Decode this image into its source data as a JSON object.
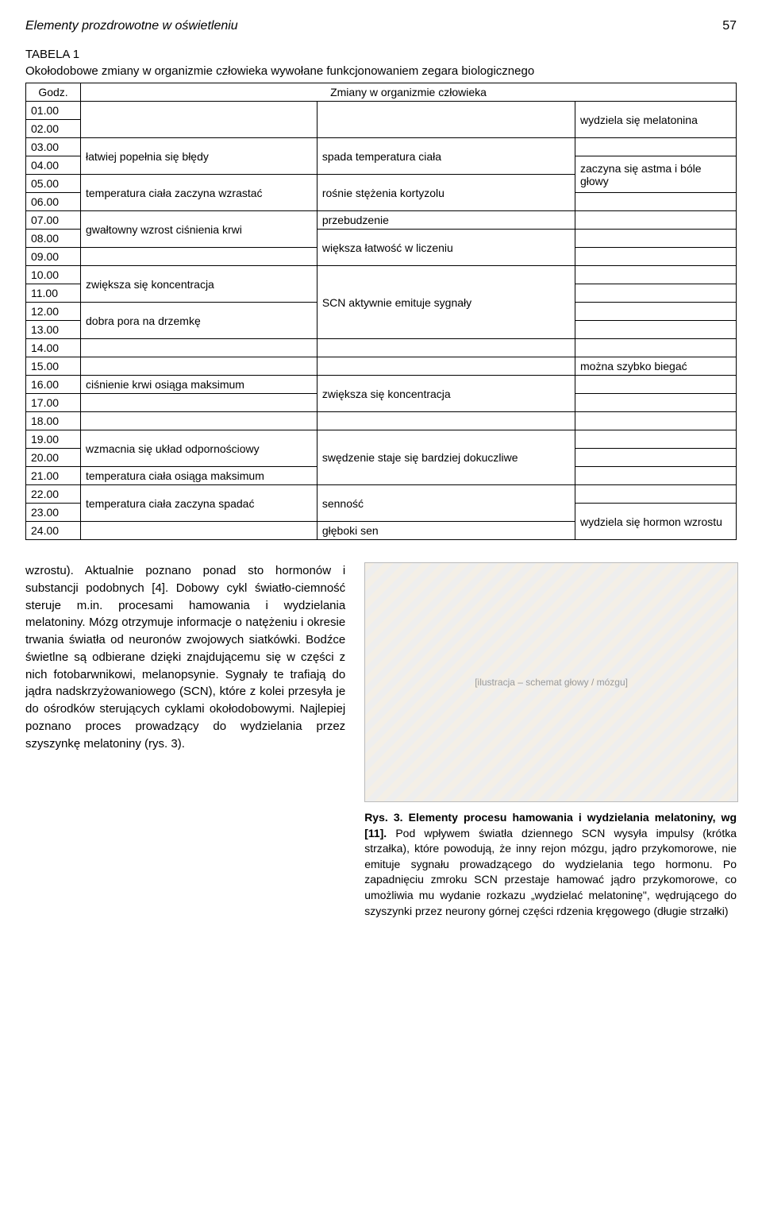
{
  "header": {
    "running_title": "Elementy prozdrowotne w oświetleniu",
    "page_number": "57"
  },
  "table": {
    "label": "TABELA 1",
    "caption": "Okołodobowe zmiany w organizmie człowieka wywołane funkcjonowaniem zegara biologicznego",
    "col1_header": "Godz.",
    "col_span_header": "Zmiany w organizmie człowieka",
    "rows": {
      "r01": {
        "godz": "01.00"
      },
      "r02": {
        "godz": "02.00"
      },
      "r03": {
        "godz": "03.00"
      },
      "r04": {
        "godz": "04.00"
      },
      "r05": {
        "godz": "05.00"
      },
      "r06": {
        "godz": "06.00"
      },
      "r07": {
        "godz": "07.00"
      },
      "r08": {
        "godz": "08.00"
      },
      "r09": {
        "godz": "09.00"
      },
      "r10": {
        "godz": "10.00"
      },
      "r11": {
        "godz": "11.00"
      },
      "r12": {
        "godz": "12.00"
      },
      "r13": {
        "godz": "13.00"
      },
      "r14": {
        "godz": "14.00"
      },
      "r15": {
        "godz": "15.00"
      },
      "r16": {
        "godz": "16.00"
      },
      "r17": {
        "godz": "17.00"
      },
      "r18": {
        "godz": "18.00"
      },
      "r19": {
        "godz": "19.00"
      },
      "r20": {
        "godz": "20.00"
      },
      "r21": {
        "godz": "21.00"
      },
      "r22": {
        "godz": "22.00"
      },
      "r23": {
        "godz": "23.00"
      },
      "r24": {
        "godz": "24.00"
      }
    },
    "col2": {
      "b1": "łatwiej popełnia się błędy",
      "b2": "temperatura ciała zaczyna wzrastać",
      "b3": "gwałtowny wzrost ciśnienia krwi",
      "b4": "zwiększa się koncentracja",
      "b5": "dobra pora na drzemkę",
      "b6": "ciśnienie krwi osiąga maksimum",
      "b7": "wzmacnia się układ odpornościowy",
      "b8": "temperatura ciała osiąga maksimum",
      "b9": "temperatura ciała zaczyna spadać"
    },
    "col3": {
      "c1": "spada temperatura ciała",
      "c2": "rośnie stężenia kortyzolu",
      "c3": "przebudzenie",
      "c4": "większa łatwość w liczeniu",
      "c5": "SCN aktywnie emituje sygnały",
      "c6": "zwiększa się koncentracja",
      "c7": "swędzenie staje się bardziej dokuczliwe",
      "c8": "senność",
      "c9": "głęboki sen"
    },
    "col4": {
      "d1": "wydziela się melatonina",
      "d2": "zaczyna się astma i bóle głowy",
      "d3": "można szybko biegać",
      "d4": "wydziela się hormon wzrostu"
    }
  },
  "body_text": {
    "paragraph": "wzrostu). Aktualnie poznano ponad sto hormonów i substancji podobnych [4]. Dobowy cykl światło-ciemność steruje m.in. procesami hamowania i wydzielania melatoniny. Mózg otrzymuje informacje o natężeniu i okresie trwania światła od neuronów zwojowych siatkówki. Bodźce świetlne są odbierane dzięki znajdującemu się w części z nich fotobarwnikowi, melanopsynie. Sygnały te trafiają do jądra nadskrzyżowaniowego (SCN), które z kolei przesyła je do ośrodków sterujących cyklami okołodobowymi. Najlepiej poznano proces prowadzący do wydzielania przez szyszynkę melatoniny (rys. 3)."
  },
  "figure": {
    "placeholder_label": "[ilustracja – schemat głowy / mózgu]",
    "caption_lead": "Rys. 3. Elementy procesu hamowania i wydzielania melatoniny, wg [11].",
    "caption_rest": " Pod wpływem światła dziennego SCN wysyła impulsy (krótka strzałka), które powodują, że inny rejon mózgu, jądro przykomorowe, nie emituje sygnału prowadzącego do wydzielania tego hormonu. Po zapadnięciu zmroku SCN przestaje hamować jądro przykomorowe, co umożliwia mu wydanie rozkazu „wydzielać melatoninę\", wędrującego do szyszynki przez neurony górnej części rdzenia kręgowego (długie strzałki)"
  }
}
